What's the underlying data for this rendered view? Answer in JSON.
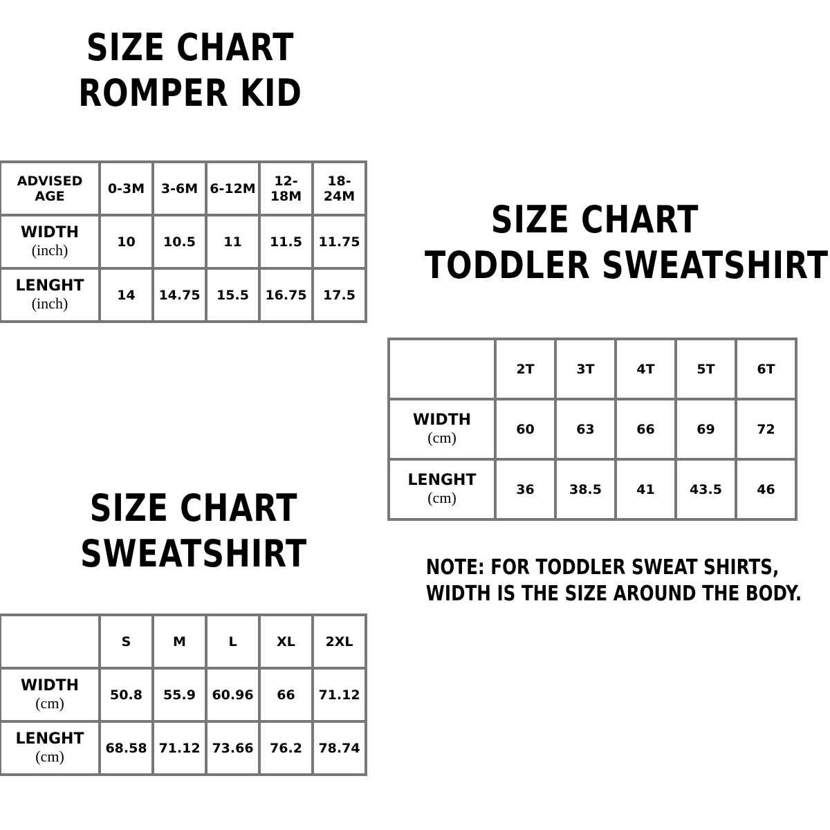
{
  "romper_kid": {
    "title": [
      "SIZE CHART",
      "ROMPER KID"
    ],
    "table": {
      "header_label": "ADVISED AGE",
      "columns": [
        "0-3M",
        "3-6M",
        "6-12M",
        "12-18M",
        "18-24M"
      ],
      "rows": [
        {
          "label": "WIDTH",
          "unit": "(inch)",
          "values": [
            "10",
            "10.5",
            "11",
            "11.5",
            "11.75"
          ]
        },
        {
          "label": "LENGHT",
          "unit": "(inch)",
          "values": [
            "14",
            "14.75",
            "15.5",
            "16.75",
            "17.5"
          ]
        }
      ]
    }
  },
  "toddler_sweatshirt": {
    "title": [
      "SIZE CHART",
      "TODDLER SWEATSHIRT"
    ],
    "table": {
      "columns": [
        "2T",
        "3T",
        "4T",
        "5T",
        "6T"
      ],
      "rows": [
        {
          "label": "WIDTH",
          "unit": "(cm)",
          "values": [
            "60",
            "63",
            "66",
            "69",
            "72"
          ]
        },
        {
          "label": "LENGHT",
          "unit": "(cm)",
          "values": [
            "36",
            "38.5",
            "41",
            "43.5",
            "46"
          ]
        }
      ]
    },
    "note": [
      "NOTE: FOR TODDLER SWEAT SHIRTS,",
      "WIDTH IS THE SIZE AROUND THE BODY."
    ]
  },
  "sweatshirt": {
    "title": [
      "SIZE CHART",
      "SWEATSHIRT"
    ],
    "table": {
      "columns": [
        "S",
        "M",
        "L",
        "XL",
        "2XL"
      ],
      "rows": [
        {
          "label": "WIDTH",
          "unit": "(cm)",
          "values": [
            "50.8",
            "55.9",
            "60.96",
            "66",
            "71.12"
          ]
        },
        {
          "label": "LENGHT",
          "unit": "(cm)",
          "values": [
            "68.58",
            "71.12",
            "73.66",
            "76.2",
            "78.74"
          ]
        }
      ]
    }
  }
}
